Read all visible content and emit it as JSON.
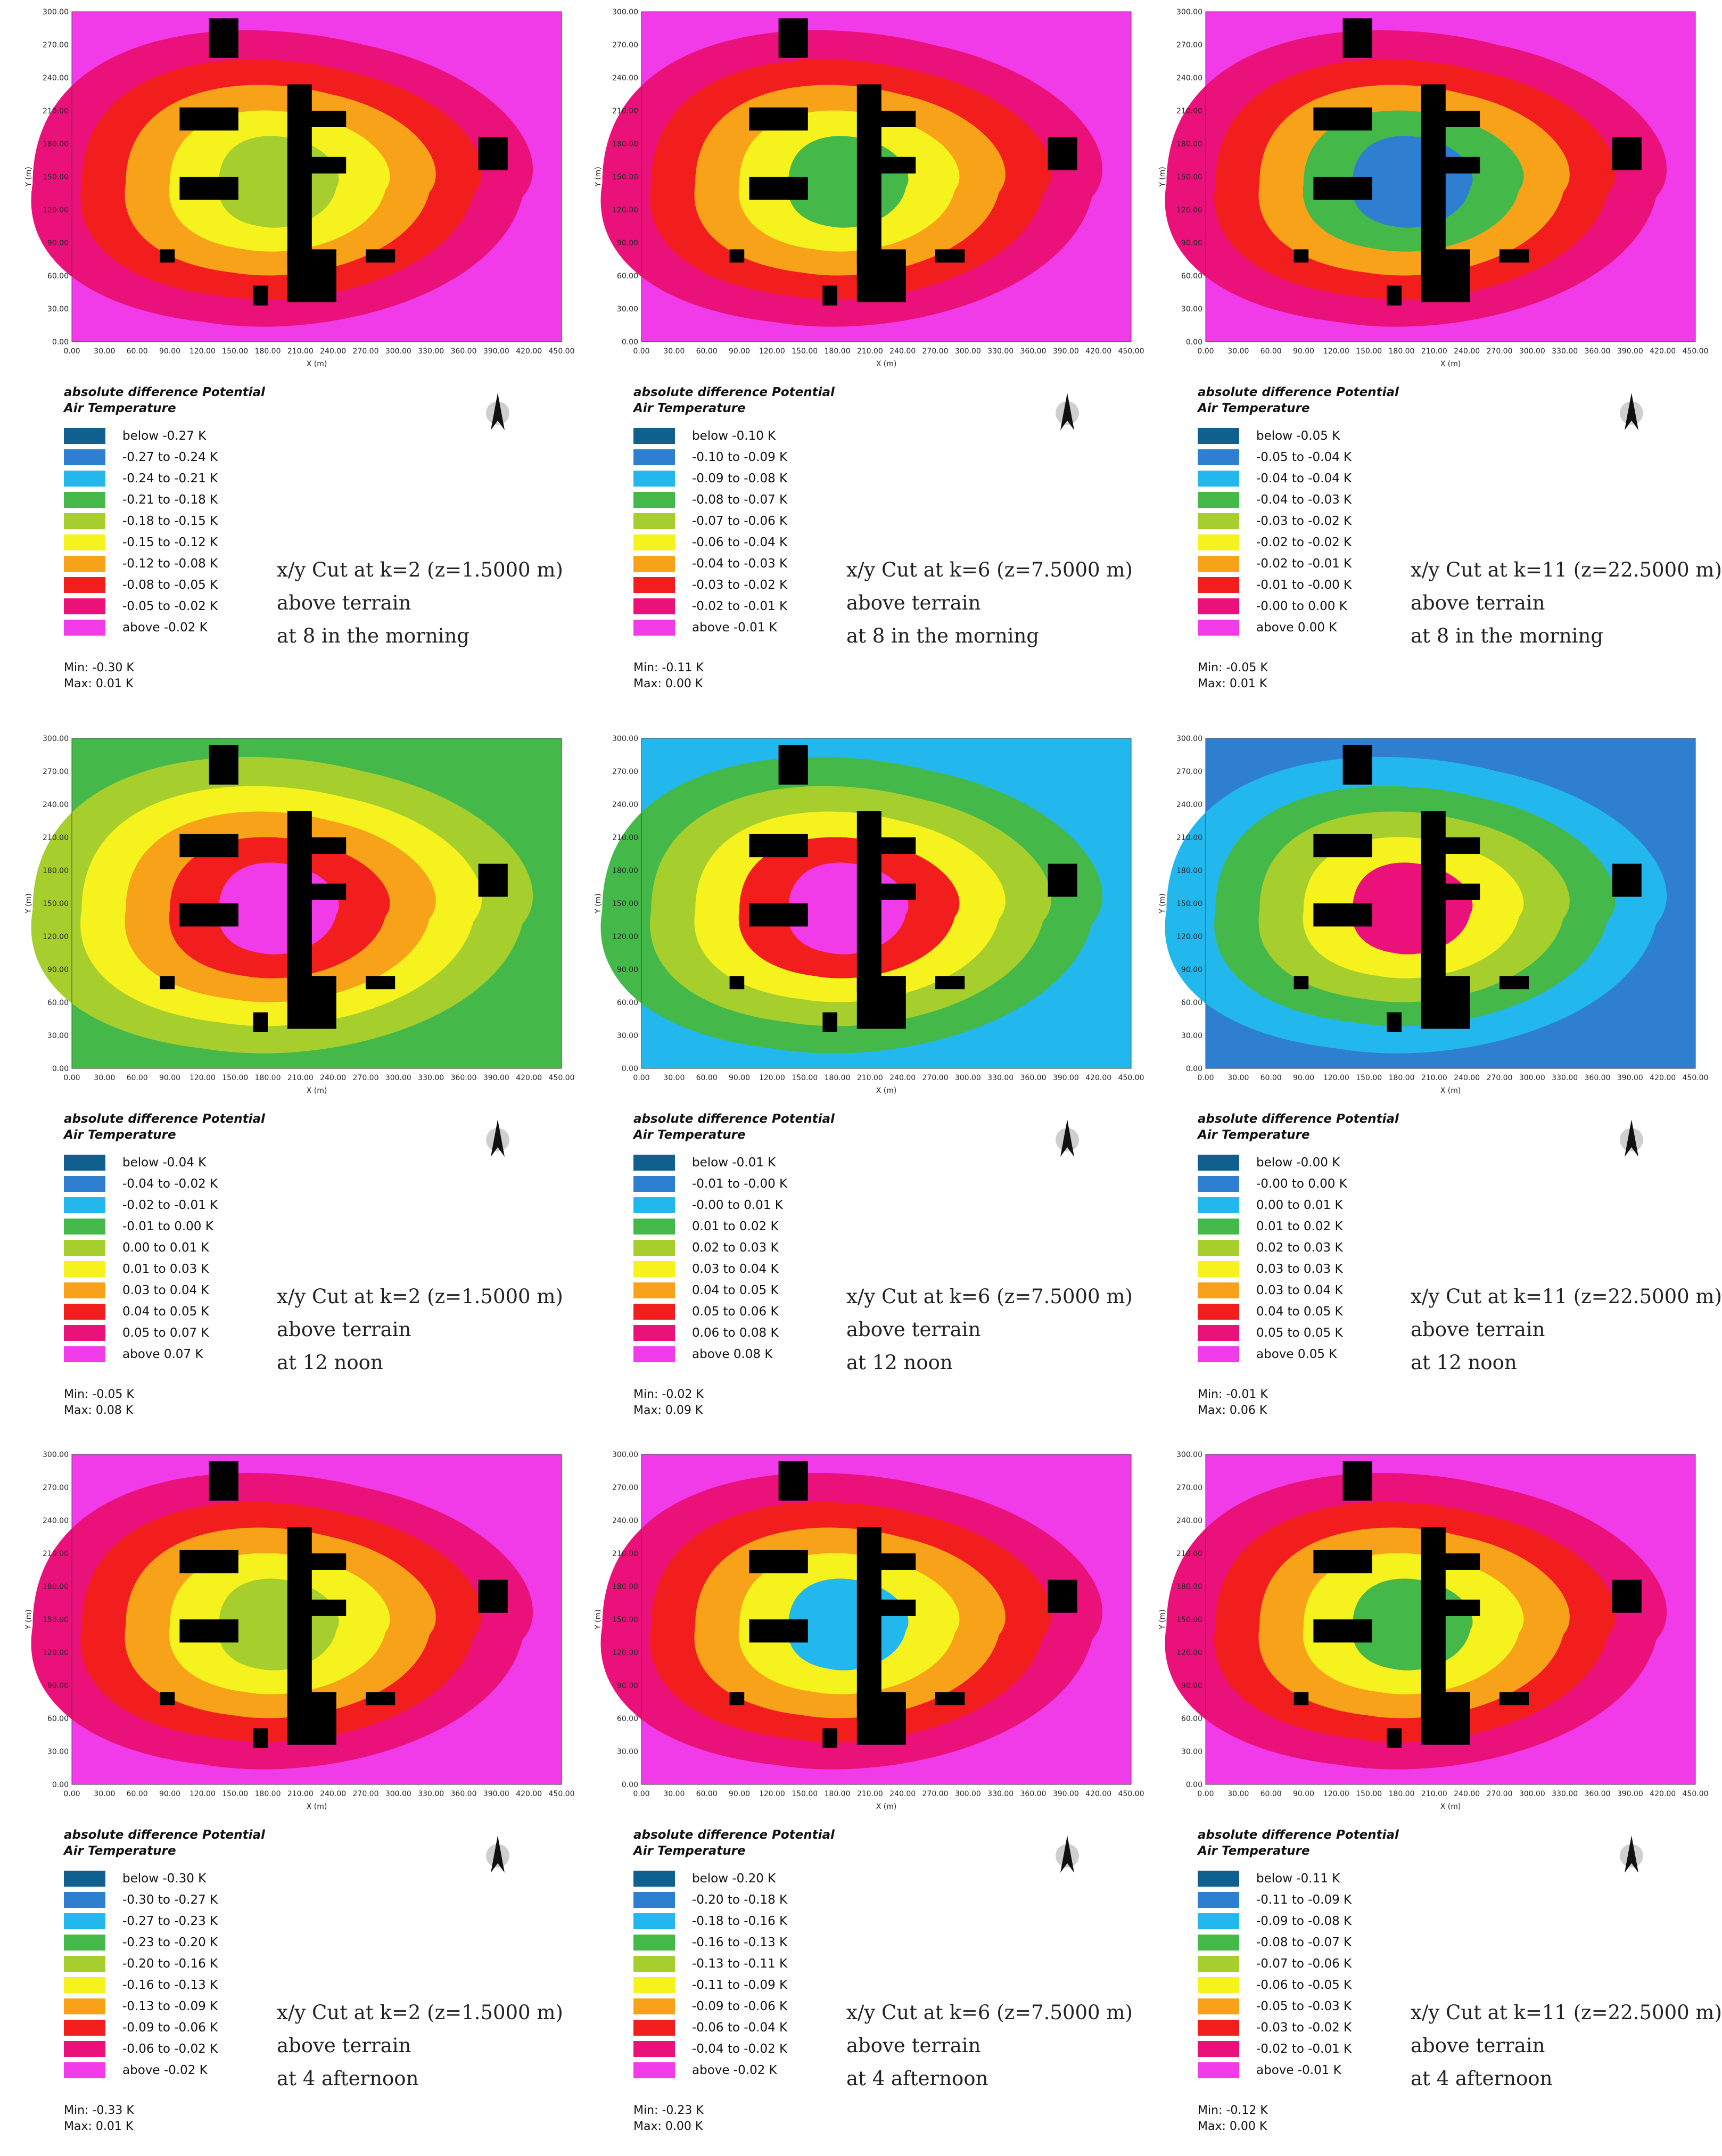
{
  "legend_title_line1": "absolute difference Potential",
  "legend_title_line2": "Air Temperature",
  "axis": {
    "x_label": "X (m)",
    "y_label": "Y (m)",
    "x_ticks": [
      "0.00",
      "30.00",
      "60.00",
      "90.00",
      "120.00",
      "150.00",
      "180.00",
      "210.00",
      "240.00",
      "270.00",
      "300.00",
      "330.00",
      "360.00",
      "390.00",
      "420.00",
      "450.00"
    ],
    "y_ticks": [
      "0.00",
      "30.00",
      "60.00",
      "90.00",
      "120.00",
      "150.00",
      "180.00",
      "210.00",
      "240.00",
      "270.00",
      "300.00"
    ]
  },
  "colors": [
    "#10608f",
    "#2f7fd0",
    "#22b8ee",
    "#44b94a",
    "#a6cf2e",
    "#f6f21d",
    "#f8a21a",
    "#f21d1d",
    "#ea127a",
    "#f13ae8"
  ],
  "panels": [
    {
      "id": "p1",
      "cut": "x/y Cut at k=2 (z=1.5000 m)",
      "line2": "above terrain",
      "line3": "at 8 in the morning",
      "min": "Min: -0.30 K",
      "max": "Max: 0.01 K",
      "legend": [
        "below -0.27 K",
        "-0.27 to -0.24 K",
        "-0.24 to -0.21 K",
        "-0.21 to -0.18 K",
        "-0.18 to -0.15 K",
        "-0.15 to -0.12 K",
        "-0.12 to -0.08 K",
        "-0.08 to -0.05 K",
        "-0.05 to -0.02 K",
        "above -0.02 K"
      ]
    },
    {
      "id": "p2",
      "cut": "x/y Cut at k=6 (z=7.5000 m)",
      "line2": "above terrain",
      "line3": "at 8 in the morning",
      "min": "Min: -0.11 K",
      "max": "Max: 0.00 K",
      "legend": [
        "below -0.10 K",
        "-0.10 to -0.09 K",
        "-0.09 to -0.08 K",
        "-0.08 to -0.07 K",
        "-0.07 to -0.06 K",
        "-0.06 to -0.04 K",
        "-0.04 to -0.03 K",
        "-0.03 to -0.02 K",
        "-0.02 to -0.01 K",
        "above -0.01 K"
      ]
    },
    {
      "id": "p3",
      "cut": "x/y Cut at k=11 (z=22.5000 m)",
      "line2": "above terrain",
      "line3": "at 8 in the morning",
      "min": "Min: -0.05 K",
      "max": "Max: 0.01 K",
      "legend": [
        "below -0.05 K",
        "-0.05 to -0.04 K",
        "-0.04 to -0.04 K",
        "-0.04 to -0.03 K",
        "-0.03 to -0.02 K",
        "-0.02 to -0.02 K",
        "-0.02 to -0.01 K",
        "-0.01 to -0.00 K",
        "-0.00 to 0.00 K",
        "above 0.00 K"
      ]
    },
    {
      "id": "p4",
      "cut": "x/y Cut at k=2 (z=1.5000 m)",
      "line2": "above terrain",
      "line3": "at 12 noon",
      "min": "Min: -0.05 K",
      "max": "Max: 0.08 K",
      "legend": [
        "below -0.04 K",
        "-0.04 to -0.02 K",
        "-0.02 to -0.01 K",
        "-0.01 to 0.00 K",
        "0.00 to 0.01 K",
        "0.01 to 0.03 K",
        "0.03 to 0.04 K",
        "0.04 to 0.05 K",
        "0.05 to 0.07 K",
        "above 0.07 K"
      ]
    },
    {
      "id": "p5",
      "cut": "x/y Cut at k=6 (z=7.5000 m)",
      "line2": "above terrain",
      "line3": "at 12 noon",
      "min": "Min: -0.02 K",
      "max": "Max: 0.09 K",
      "legend": [
        "below -0.01 K",
        "-0.01 to -0.00 K",
        "-0.00 to 0.01 K",
        "0.01 to 0.02 K",
        "0.02 to 0.03 K",
        "0.03 to 0.04 K",
        "0.04 to 0.05 K",
        "0.05 to 0.06 K",
        "0.06 to 0.08 K",
        "above 0.08 K"
      ]
    },
    {
      "id": "p6",
      "cut": "x/y Cut at k=11 (z=22.5000 m)",
      "line2": "above terrain",
      "line3": "at 12 noon",
      "min": "Min: -0.01 K",
      "max": "Max: 0.06 K",
      "legend": [
        "below -0.00 K",
        "-0.00 to 0.00 K",
        "0.00 to 0.01 K",
        "0.01 to 0.02 K",
        "0.02 to 0.03 K",
        "0.03 to 0.03 K",
        "0.03 to 0.04 K",
        "0.04 to 0.05 K",
        "0.05 to 0.05 K",
        "above 0.05 K"
      ]
    },
    {
      "id": "p7",
      "cut": "x/y Cut at k=2 (z=1.5000 m)",
      "line2": "above terrain",
      "line3": "at 4 afternoon",
      "min": "Min: -0.33 K",
      "max": "Max: 0.01 K",
      "legend": [
        "below -0.30 K",
        "-0.30 to -0.27 K",
        "-0.27 to -0.23 K",
        "-0.23 to -0.20 K",
        "-0.20 to -0.16 K",
        "-0.16 to -0.13 K",
        "-0.13 to -0.09 K",
        "-0.09 to -0.06 K",
        "-0.06 to -0.02 K",
        "above -0.02 K"
      ]
    },
    {
      "id": "p8",
      "cut": "x/y Cut at k=6 (z=7.5000 m)",
      "line2": "above terrain",
      "line3": "at 4 afternoon",
      "min": "Min: -0.23 K",
      "max": "Max: 0.00 K",
      "legend": [
        "below -0.20 K",
        "-0.20 to -0.18 K",
        "-0.18 to -0.16 K",
        "-0.16 to -0.13 K",
        "-0.13 to -0.11 K",
        "-0.11 to -0.09 K",
        "-0.09 to -0.06 K",
        "-0.06 to -0.04 K",
        "-0.04 to -0.02 K",
        "above -0.02 K"
      ]
    },
    {
      "id": "p9",
      "cut": "x/y Cut at k=11 (z=22.5000 m)",
      "line2": "above terrain",
      "line3": "at 4 afternoon",
      "min": "Min: -0.12 K",
      "max": "Max: 0.00 K",
      "legend": [
        "below -0.11 K",
        "-0.11 to -0.09 K",
        "-0.09 to -0.08 K",
        "-0.08 to -0.07 K",
        "-0.07 to -0.06 K",
        "-0.06 to -0.05 K",
        "-0.05 to -0.03 K",
        "-0.03 to -0.02 K",
        "-0.02 to -0.01 K",
        "above -0.01 K"
      ]
    }
  ]
}
